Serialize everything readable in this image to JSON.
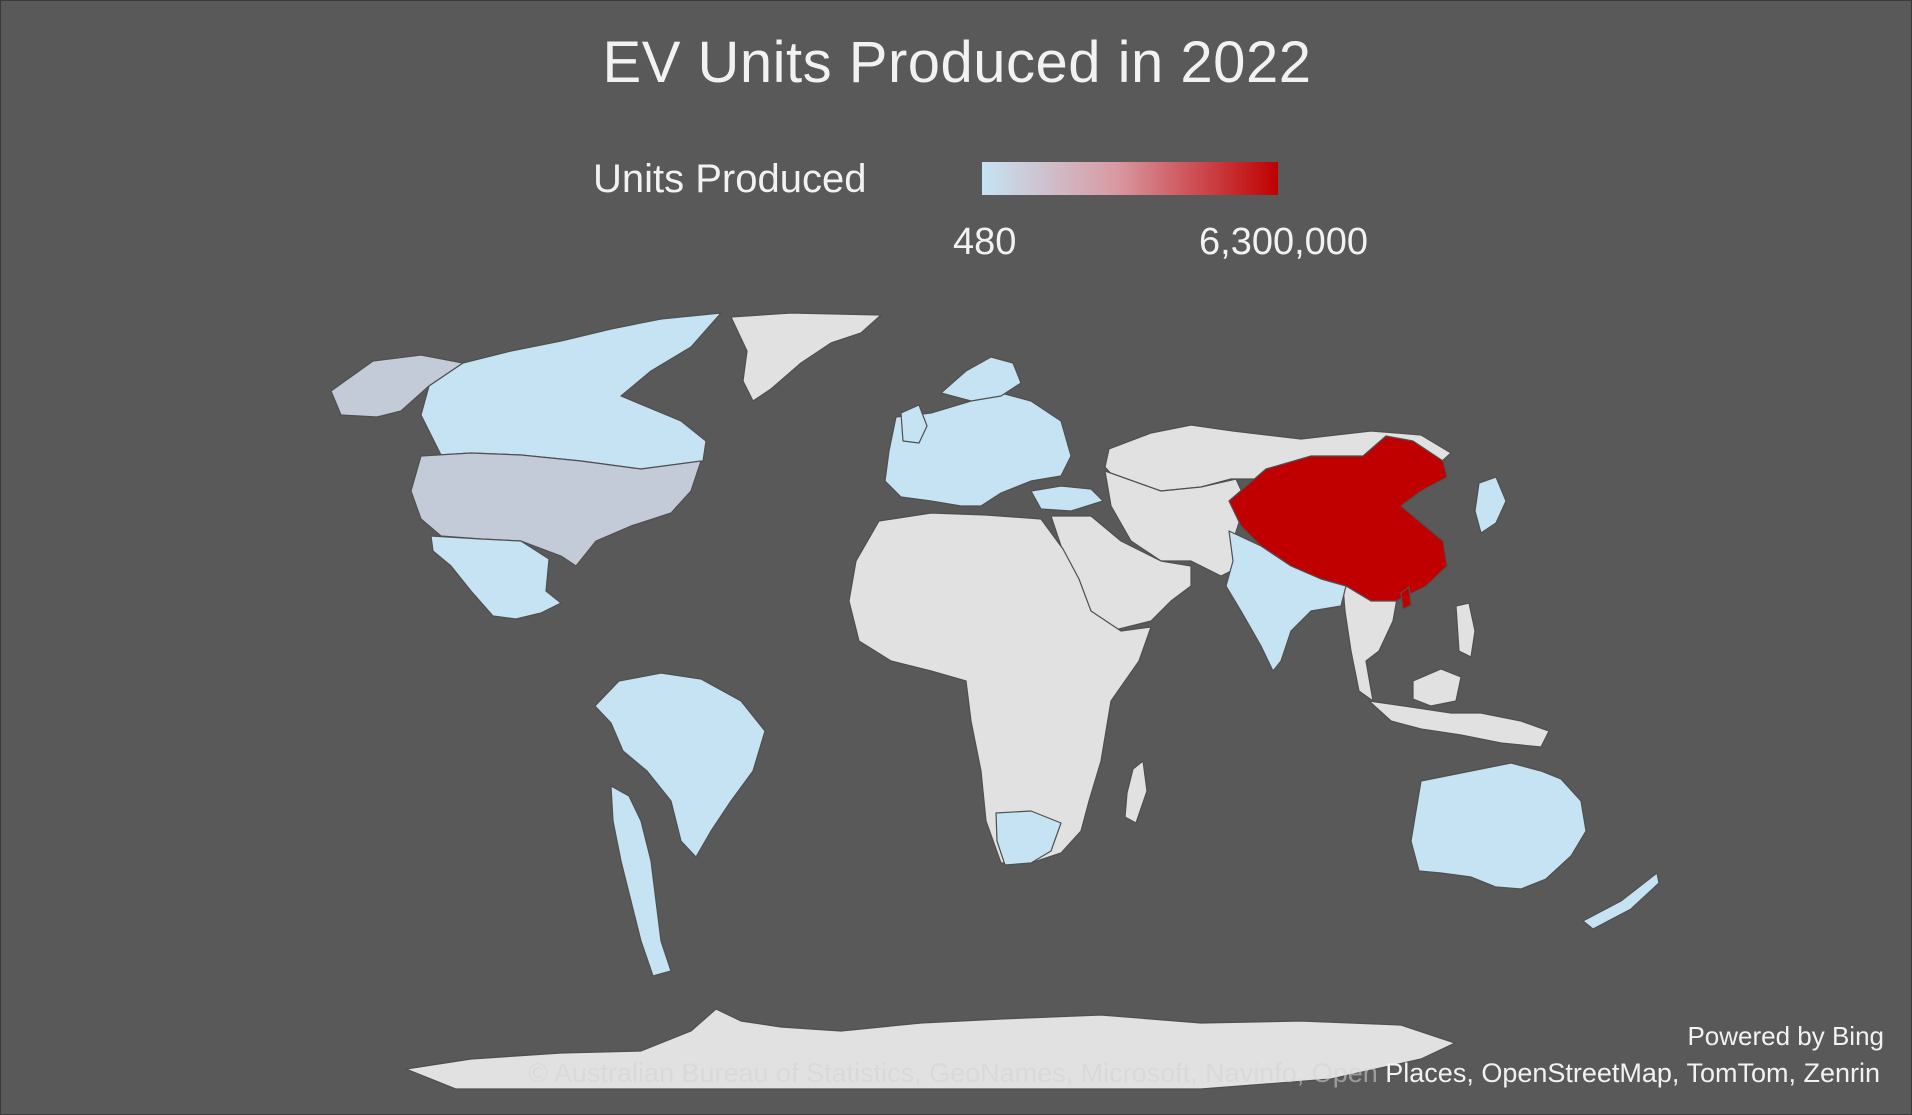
{
  "title": "EV Units Produced in 2022",
  "legend": {
    "title": "Units Produced",
    "min_label": "480",
    "max_label": "6,300,000",
    "min_value": 480,
    "max_value": 6300000,
    "color_low": "#c6e3f3",
    "color_high": "#c00000"
  },
  "colors": {
    "background": "#595959",
    "no_data": "#e1e1e1",
    "text": "#f2f2f2"
  },
  "regions": [
    {
      "name": "China",
      "color": "#c00000",
      "level": "high"
    },
    {
      "name": "United States",
      "color": "#c3cad8",
      "level": "low"
    },
    {
      "name": "Alaska",
      "color": "#c3cad8",
      "level": "low"
    },
    {
      "name": "Canada",
      "color": "#c6e3f3",
      "level": "low"
    },
    {
      "name": "Mexico",
      "color": "#c6e3f3",
      "level": "low"
    },
    {
      "name": "Brazil",
      "color": "#c6e3f3",
      "level": "low"
    },
    {
      "name": "Argentina",
      "color": "#c6e3f3",
      "level": "low"
    },
    {
      "name": "Europe",
      "color": "#c6e3f3",
      "level": "low"
    },
    {
      "name": "Turkey",
      "color": "#c6e3f3",
      "level": "low"
    },
    {
      "name": "India",
      "color": "#c6e3f3",
      "level": "low"
    },
    {
      "name": "Japan",
      "color": "#c6e3f3",
      "level": "low"
    },
    {
      "name": "South Africa",
      "color": "#c6e3f3",
      "level": "low"
    },
    {
      "name": "Australia",
      "color": "#c6e3f3",
      "level": "low"
    },
    {
      "name": "New Zealand",
      "color": "#c6e3f3",
      "level": "low"
    }
  ],
  "footer": {
    "powered_by": "Powered by Bing",
    "attribution_faint": "© Australian Bureau of Statistics, GeoNames, Microsoft, Navinfo, Open",
    "attribution_bright": " Places, OpenStreetMap, TomTom, Zenrin"
  }
}
